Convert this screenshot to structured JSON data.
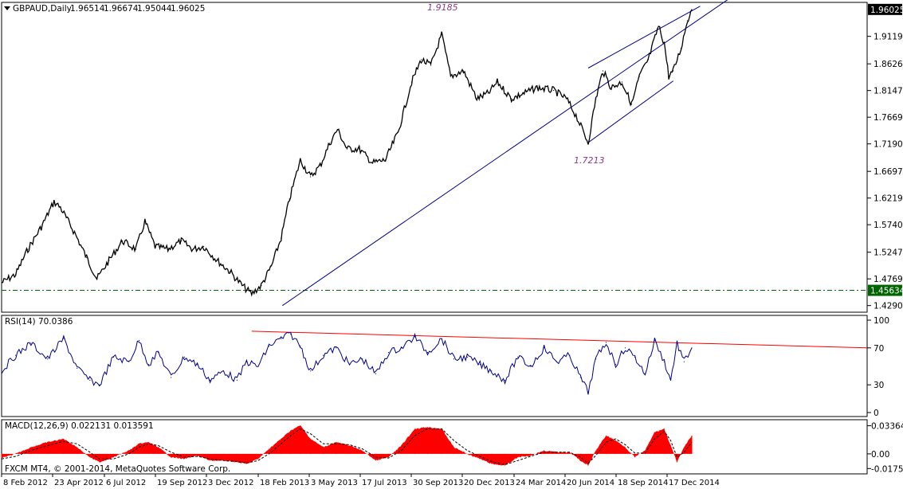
{
  "header": {
    "symbol": "GBPAUD,Daily",
    "open": "1.96514",
    "high": "1.96674",
    "low": "1.95044",
    "close": "1.96025"
  },
  "copyright": "FXCM MT4, © 2001-2014, MetaQuotes Software Corp.",
  "colors": {
    "price_line": "#000000",
    "channel_lines": "#00008b",
    "support_line": "#006400",
    "rsi_line": "#00008b",
    "rsi_trendline": "#ff0000",
    "macd_hist": "#ff0000",
    "macd_signal": "#000000",
    "annotation": "#8b3a8b",
    "grid": "#000000"
  },
  "chart_data": [
    {
      "type": "line",
      "name": "price-panel",
      "title": "GBPAUD,Daily",
      "y_ticks": [
        "1.91190",
        "1.86260",
        "1.81475",
        "1.76690",
        "1.71905",
        "1.66975",
        "1.62190",
        "1.57405",
        "1.52475",
        "1.47690",
        "1.42905"
      ],
      "ylim": [
        1.42,
        1.97
      ],
      "current_price": "1.96025",
      "support_level": "1.45634",
      "annotations": [
        {
          "text": "1.9185",
          "x": "2013-12-27",
          "y": 1.9185
        },
        {
          "text": "1.7213",
          "x": "2014-08-13",
          "y": 1.7213
        }
      ],
      "trendlines": [
        {
          "name": "lower-long",
          "x": [
            "2013-04-22",
            "2015-04-10"
          ],
          "y": [
            1.429,
            1.995
          ]
        },
        {
          "name": "channel-upper",
          "x": [
            "2014-08-13",
            "2015-02-04"
          ],
          "y": [
            1.855,
            1.966
          ]
        },
        {
          "name": "channel-lower",
          "x": [
            "2014-08-13",
            "2014-12-24"
          ],
          "y": [
            1.7213,
            1.832
          ]
        }
      ],
      "series": [
        {
          "x": [
            "2012-02-08",
            "2012-03-01",
            "2012-03-20",
            "2012-04-10",
            "2012-04-30",
            "2012-05-10",
            "2012-06-01",
            "2012-06-20",
            "2012-07-06",
            "2012-07-25",
            "2012-08-15",
            "2012-09-05",
            "2012-09-19",
            "2012-10-05",
            "2012-10-25",
            "2012-11-15",
            "2012-12-03",
            "2012-12-20",
            "2013-01-10",
            "2013-01-30",
            "2013-02-18",
            "2013-03-05",
            "2013-03-20",
            "2013-04-05",
            "2013-04-20",
            "2013-05-03",
            "2013-05-20",
            "2013-06-05",
            "2013-06-20",
            "2013-07-05",
            "2013-07-17",
            "2013-08-01",
            "2013-08-20",
            "2013-09-10",
            "2013-09-30",
            "2013-10-20",
            "2013-11-10",
            "2013-11-25",
            "2013-12-10",
            "2013-12-27",
            "2014-01-10",
            "2014-01-30",
            "2014-02-20",
            "2014-03-10",
            "2014-03-24",
            "2014-04-15",
            "2014-05-05",
            "2014-05-25",
            "2014-06-20",
            "2014-07-10",
            "2014-07-25",
            "2014-08-13",
            "2014-08-25",
            "2014-09-05",
            "2014-09-18",
            "2014-10-05",
            "2014-10-20",
            "2014-11-01",
            "2014-11-15",
            "2014-12-01",
            "2014-12-10",
            "2014-12-17",
            "2014-12-24",
            "2015-01-05",
            "2015-01-15",
            "2015-01-22"
          ],
          "y": [
            1.47,
            1.485,
            1.53,
            1.57,
            1.615,
            1.605,
            1.56,
            1.515,
            1.477,
            1.51,
            1.545,
            1.53,
            1.58,
            1.535,
            1.53,
            1.545,
            1.53,
            1.535,
            1.51,
            1.49,
            1.465,
            1.45,
            1.465,
            1.5,
            1.55,
            1.62,
            1.69,
            1.66,
            1.68,
            1.72,
            1.745,
            1.71,
            1.71,
            1.685,
            1.69,
            1.74,
            1.83,
            1.87,
            1.86,
            1.915,
            1.84,
            1.85,
            1.8,
            1.81,
            1.83,
            1.8,
            1.81,
            1.82,
            1.815,
            1.8,
            1.77,
            1.7213,
            1.8,
            1.85,
            1.82,
            1.83,
            1.79,
            1.84,
            1.87,
            1.93,
            1.9,
            1.84,
            1.85,
            1.89,
            1.94,
            1.96
          ]
        }
      ]
    },
    {
      "type": "line",
      "name": "rsi-panel",
      "title": "RSI(14) 70.0386",
      "y_ticks": [
        "100",
        "70",
        "30",
        "0"
      ],
      "ylim": [
        0,
        100
      ],
      "trendline": {
        "x": [
          "2013-02-18",
          "2015-04-10"
        ],
        "y": [
          88,
          70
        ]
      },
      "series": [
        {
          "x": [
            "2012-02-08",
            "2012-03-01",
            "2012-03-25",
            "2012-04-20",
            "2012-05-15",
            "2012-06-05",
            "2012-06-25",
            "2012-07-10",
            "2012-08-01",
            "2012-08-25",
            "2012-09-10",
            "2012-09-25",
            "2012-10-10",
            "2012-10-30",
            "2012-11-20",
            "2012-12-10",
            "2012-12-30",
            "2013-01-20",
            "2013-02-10",
            "2013-02-25",
            "2013-03-15",
            "2013-04-01",
            "2013-04-20",
            "2013-05-05",
            "2013-05-20",
            "2013-06-05",
            "2013-06-25",
            "2013-07-15",
            "2013-08-05",
            "2013-08-25",
            "2013-09-15",
            "2013-10-05",
            "2013-10-25",
            "2013-11-15",
            "2013-12-05",
            "2013-12-27",
            "2014-01-15",
            "2014-02-05",
            "2014-02-25",
            "2014-03-15",
            "2014-04-05",
            "2014-04-25",
            "2014-05-15",
            "2014-06-05",
            "2014-06-25",
            "2014-07-15",
            "2014-08-01",
            "2014-08-13",
            "2014-08-25",
            "2014-09-10",
            "2014-09-25",
            "2014-10-10",
            "2014-10-25",
            "2014-11-10",
            "2014-11-25",
            "2014-12-10",
            "2014-12-20",
            "2014-12-30",
            "2015-01-10",
            "2015-01-22"
          ],
          "y": [
            45,
            62,
            75,
            58,
            80,
            48,
            35,
            30,
            60,
            55,
            78,
            52,
            65,
            38,
            60,
            52,
            35,
            45,
            35,
            55,
            50,
            72,
            80,
            85,
            72,
            45,
            62,
            70,
            52,
            58,
            42,
            65,
            70,
            82,
            65,
            80,
            58,
            60,
            52,
            45,
            35,
            60,
            50,
            70,
            55,
            62,
            38,
            22,
            58,
            76,
            52,
            70,
            60,
            42,
            78,
            55,
            35,
            75,
            55,
            70
          ]
        }
      ]
    },
    {
      "type": "bar",
      "name": "macd-panel",
      "title": "MACD(12,26,9) 0.022131 0.013591",
      "y_ticks": [
        "0.033648",
        "0.00",
        "-0.017529"
      ],
      "ylim": [
        -0.022,
        0.038
      ],
      "series": [
        {
          "name": "MACD",
          "x": [
            "2012-02-08",
            "2012-03-01",
            "2012-03-25",
            "2012-04-20",
            "2012-05-15",
            "2012-06-05",
            "2012-06-25",
            "2012-07-10",
            "2012-08-01",
            "2012-08-25",
            "2012-09-10",
            "2012-09-25",
            "2012-10-10",
            "2012-10-30",
            "2012-11-20",
            "2012-12-10",
            "2012-12-30",
            "2013-01-20",
            "2013-02-10",
            "2013-02-25",
            "2013-03-15",
            "2013-04-01",
            "2013-04-20",
            "2013-05-05",
            "2013-05-20",
            "2013-06-05",
            "2013-06-25",
            "2013-07-15",
            "2013-08-05",
            "2013-08-25",
            "2013-09-15",
            "2013-10-05",
            "2013-10-25",
            "2013-11-15",
            "2013-12-05",
            "2013-12-27",
            "2014-01-15",
            "2014-02-05",
            "2014-02-25",
            "2014-03-15",
            "2014-04-05",
            "2014-04-25",
            "2014-05-15",
            "2014-06-05",
            "2014-06-25",
            "2014-07-15",
            "2014-08-01",
            "2014-08-13",
            "2014-08-25",
            "2014-09-10",
            "2014-09-25",
            "2014-10-10",
            "2014-10-25",
            "2014-11-10",
            "2014-11-25",
            "2014-12-10",
            "2014-12-20",
            "2014-12-30",
            "2015-01-10",
            "2015-01-22"
          ],
          "values": [
            -0.005,
            0.0,
            0.008,
            0.014,
            0.018,
            0.008,
            -0.004,
            -0.01,
            -0.004,
            0.004,
            0.012,
            0.014,
            0.008,
            -0.004,
            -0.006,
            -0.002,
            -0.008,
            -0.008,
            -0.01,
            -0.012,
            -0.006,
            0.006,
            0.018,
            0.028,
            0.034,
            0.018,
            0.008,
            0.014,
            0.01,
            0.004,
            -0.008,
            -0.004,
            0.01,
            0.03,
            0.032,
            0.03,
            0.008,
            0.0,
            -0.006,
            -0.012,
            -0.014,
            -0.004,
            -0.002,
            0.004,
            0.002,
            0.002,
            -0.008,
            -0.014,
            0.004,
            0.022,
            0.016,
            0.008,
            -0.004,
            0.004,
            0.026,
            0.03,
            0.01,
            -0.01,
            0.008,
            0.022
          ]
        },
        {
          "name": "Signal",
          "x": [
            "2012-02-08",
            "2012-03-01",
            "2012-03-25",
            "2012-04-20",
            "2012-05-15",
            "2012-06-05",
            "2012-06-25",
            "2012-07-10",
            "2012-08-01",
            "2012-08-25",
            "2012-09-10",
            "2012-09-25",
            "2012-10-10",
            "2012-10-30",
            "2012-11-20",
            "2012-12-10",
            "2012-12-30",
            "2013-01-20",
            "2013-02-10",
            "2013-02-25",
            "2013-03-15",
            "2013-04-01",
            "2013-04-20",
            "2013-05-05",
            "2013-05-20",
            "2013-06-05",
            "2013-06-25",
            "2013-07-15",
            "2013-08-05",
            "2013-08-25",
            "2013-09-15",
            "2013-10-05",
            "2013-10-25",
            "2013-11-15",
            "2013-12-05",
            "2013-12-27",
            "2014-01-15",
            "2014-02-05",
            "2014-02-25",
            "2014-03-15",
            "2014-04-05",
            "2014-04-25",
            "2014-05-15",
            "2014-06-05",
            "2014-06-25",
            "2014-07-15",
            "2014-08-01",
            "2014-08-13",
            "2014-08-25",
            "2014-09-10",
            "2014-09-25",
            "2014-10-10",
            "2014-10-25",
            "2014-11-10",
            "2014-11-25",
            "2014-12-10",
            "2014-12-20",
            "2014-12-30",
            "2015-01-10",
            "2015-01-22"
          ],
          "values": [
            -0.006,
            -0.003,
            0.004,
            0.01,
            0.015,
            0.012,
            0.002,
            -0.006,
            -0.006,
            0.0,
            0.008,
            0.012,
            0.01,
            0.002,
            -0.004,
            -0.003,
            -0.006,
            -0.008,
            -0.009,
            -0.011,
            -0.008,
            0.0,
            0.012,
            0.022,
            0.03,
            0.024,
            0.012,
            0.012,
            0.011,
            0.006,
            -0.004,
            -0.005,
            0.004,
            0.022,
            0.03,
            0.03,
            0.016,
            0.004,
            -0.003,
            -0.009,
            -0.013,
            -0.008,
            -0.003,
            0.002,
            0.002,
            0.002,
            -0.004,
            -0.011,
            -0.002,
            0.014,
            0.018,
            0.011,
            0.001,
            0.001,
            0.018,
            0.027,
            0.016,
            -0.004,
            0.002,
            0.014
          ]
        }
      ]
    }
  ],
  "x_axis_labels": [
    "8 Feb 2012",
    "23 Apr 2012",
    "6 Jul 2012",
    "19 Sep 2012",
    "3 Dec 2012",
    "18 Feb 2013",
    "3 May 2013",
    "17 Jul 2013",
    "30 Sep 2013",
    "20 Dec 2013",
    "24 Mar 2014",
    "20 Jun 2014",
    "18 Sep 2014",
    "17 Dec 2014"
  ]
}
